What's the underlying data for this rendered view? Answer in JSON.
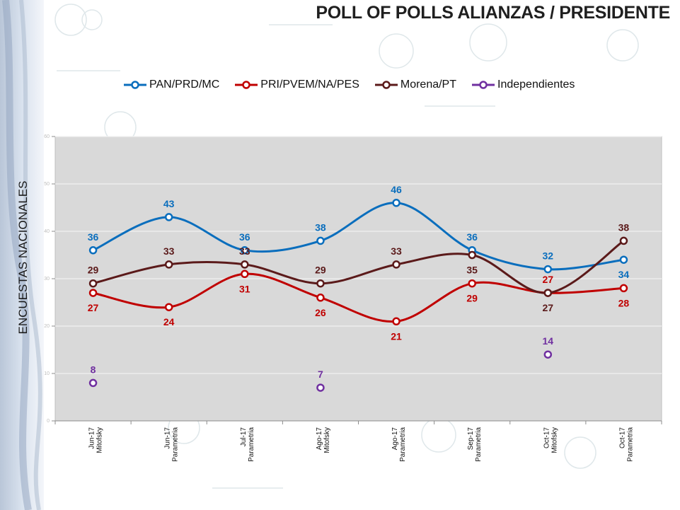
{
  "title": "POLL OF POLLS ALIANZAS / PRESIDENTE",
  "side_label": "ENCUESTAS NACIONALES",
  "chart_data": {
    "type": "line",
    "categories": [
      [
        "Jun-17",
        "Mitofsky"
      ],
      [
        "Jun-17",
        "Parametria"
      ],
      [
        "Jul-17",
        "Parametria"
      ],
      [
        "Ago-17",
        "Mitofsky"
      ],
      [
        "Ago-17",
        "Parametria"
      ],
      [
        "Sep-17",
        "Parametria"
      ],
      [
        "Oct-17",
        "Mitofsky"
      ],
      [
        "Oct-17",
        "Parametria"
      ]
    ],
    "ylim": [
      0,
      60
    ],
    "yticks": [
      0,
      10,
      20,
      30,
      40,
      50,
      60
    ],
    "grid": true,
    "legend_position": "top",
    "series": [
      {
        "name": "PAN/PRD/MC",
        "color": "#0a6ebd",
        "values": [
          36,
          43,
          36,
          38,
          46,
          36,
          32,
          34
        ],
        "labels": [
          "36",
          "43",
          "36",
          "38",
          "46",
          "36",
          "32",
          "34"
        ],
        "smooth": true
      },
      {
        "name": "PRI/PVEM/NA/PES",
        "color": "#c00000",
        "values": [
          27,
          24,
          31,
          26,
          21,
          29,
          27,
          28
        ],
        "labels": [
          "27",
          "24",
          "31",
          "26",
          "21",
          "29",
          "27",
          "28"
        ],
        "smooth": true
      },
      {
        "name": "Morena/PT",
        "color": "#5b1a1a",
        "values": [
          29,
          33,
          33,
          29,
          33,
          35,
          27,
          38
        ],
        "labels": [
          "29",
          "33",
          "33",
          "29",
          "33",
          "35",
          "27",
          "38"
        ],
        "smooth": true
      },
      {
        "name": "Independientes",
        "color": "#7030a0",
        "values": [
          8,
          null,
          null,
          7,
          null,
          null,
          14,
          null
        ],
        "labels": [
          "8",
          "",
          "",
          "7",
          "",
          "",
          "14",
          ""
        ],
        "smooth": false
      }
    ]
  }
}
